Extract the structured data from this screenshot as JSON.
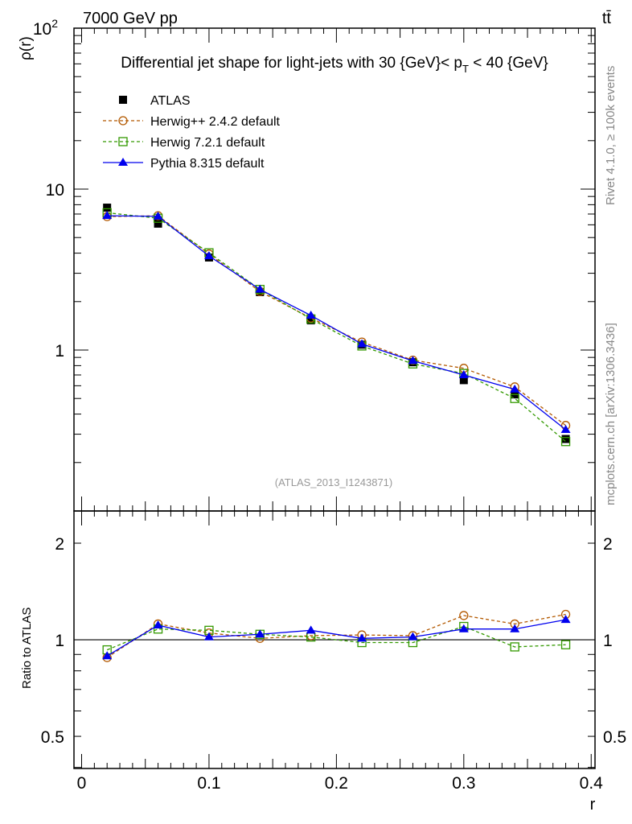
{
  "header": {
    "left": "7000 GeV pp",
    "right": "tt̄"
  },
  "side_labels": {
    "top": "Rivet 4.1.0, ≥ 100k events",
    "bottom": "mcplots.cern.ch [arXiv:1306.3436]"
  },
  "chart_data": [
    {
      "type": "line",
      "title": "Differential jet shape for light-jets with 30 {GeV}< p_T < 40 {GeV}",
      "watermark": "(ATLAS_2013_I1243871)",
      "xlabel": "r",
      "ylabel": "ρ(r)",
      "yscale": "log",
      "ylim": [
        0.1,
        100
      ],
      "xlim": [
        -0.006,
        0.403
      ],
      "yticks": [
        {
          "v": 100,
          "label": "10",
          "sup": "2"
        },
        {
          "v": 10,
          "label": "10",
          "sup": ""
        },
        {
          "v": 1,
          "label": "1",
          "sup": ""
        }
      ],
      "legend_position": "top-left",
      "x": [
        0.02,
        0.06,
        0.1,
        0.14,
        0.18,
        0.22,
        0.26,
        0.3,
        0.34,
        0.38
      ],
      "series": [
        {
          "name": "ATLAS",
          "color": "#000000",
          "marker": "square-filled",
          "dash": "none",
          "values": [
            7.67,
            6.1,
            3.76,
            2.29,
            1.53,
            1.08,
            0.84,
            0.65,
            0.53,
            0.28
          ]
        },
        {
          "name": "Herwig++ 2.4.2 default",
          "color": "#b35900",
          "marker": "circle-open",
          "dash": "4,3",
          "values": [
            6.75,
            6.83,
            3.95,
            2.31,
            1.58,
            1.12,
            0.865,
            0.77,
            0.59,
            0.34
          ]
        },
        {
          "name": "Herwig 7.2.1 default",
          "color": "#339900",
          "marker": "square-open",
          "dash": "4,3",
          "values": [
            7.13,
            6.59,
            4.02,
            2.38,
            1.56,
            1.06,
            0.82,
            0.715,
            0.5,
            0.27
          ]
        },
        {
          "name": "Pythia 8.315 default",
          "color": "#0000ee",
          "marker": "triangle-filled",
          "dash": "none",
          "values": [
            6.83,
            6.77,
            3.84,
            2.38,
            1.64,
            1.09,
            0.857,
            0.7,
            0.57,
            0.32
          ]
        }
      ]
    },
    {
      "type": "line",
      "ylabel": "Ratio to ATLAS",
      "xlabel": "r",
      "yscale": "log",
      "ylim": [
        0.397,
        2.52
      ],
      "xlim": [
        -0.006,
        0.403
      ],
      "yticks": [
        {
          "v": 2,
          "label": "2"
        },
        {
          "v": 1,
          "label": "1"
        },
        {
          "v": 0.5,
          "label": "0.5"
        }
      ],
      "xticks": [
        {
          "v": 0,
          "label": "0"
        },
        {
          "v": 0.1,
          "label": "0.1"
        },
        {
          "v": 0.2,
          "label": "0.2"
        },
        {
          "v": 0.3,
          "label": "0.3"
        },
        {
          "v": 0.4,
          "label": "0.4"
        }
      ],
      "x": [
        0.02,
        0.06,
        0.1,
        0.14,
        0.18,
        0.22,
        0.26,
        0.3,
        0.34,
        0.38
      ],
      "series": [
        {
          "name": "Herwig++ 2.4.2 default",
          "color": "#b35900",
          "marker": "circle-open",
          "dash": "4,3",
          "values": [
            0.88,
            1.12,
            1.05,
            1.01,
            1.03,
            1.035,
            1.03,
            1.19,
            1.12,
            1.2
          ]
        },
        {
          "name": "Herwig 7.2.1 default",
          "color": "#339900",
          "marker": "square-open",
          "dash": "4,3",
          "values": [
            0.93,
            1.08,
            1.07,
            1.04,
            1.02,
            0.98,
            0.98,
            1.1,
            0.95,
            0.965
          ]
        },
        {
          "name": "Pythia 8.315 default",
          "color": "#0000ee",
          "marker": "triangle-filled",
          "dash": "none",
          "values": [
            0.89,
            1.11,
            1.02,
            1.04,
            1.07,
            1.01,
            1.02,
            1.08,
            1.08,
            1.155
          ]
        }
      ]
    }
  ]
}
